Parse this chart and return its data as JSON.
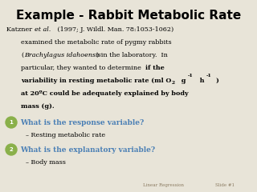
{
  "title": "Example - Rabbit Metabolic Rate",
  "background_color": "#e8e4d8",
  "title_color": "#000000",
  "title_fontsize": 11,
  "body_fontsize": 5.8,
  "bullet_fontsize": 6.5,
  "answer_fontsize": 5.8,
  "bullet_color": "#8ab04a",
  "question_color": "#4a7fb5",
  "answer_color": "#000000",
  "footer_left": "Linear Regression",
  "footer_right": "Slide #1",
  "footer_color": "#8a7a60"
}
